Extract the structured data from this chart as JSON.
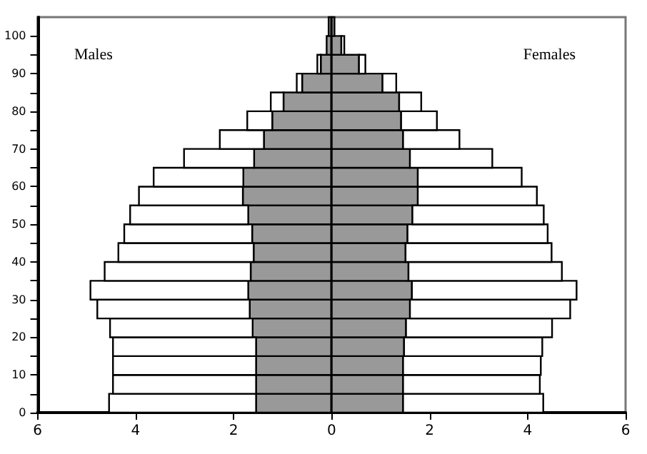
{
  "chart_data": {
    "type": "bar",
    "orientation": "horizontal",
    "x": [
      2.5,
      7.5,
      12.5,
      17.5,
      22.5,
      27.5,
      32.5,
      37.5,
      42.5,
      47.5,
      52.5,
      57.5,
      62.5,
      67.5,
      72.5,
      77.5,
      82.5,
      87.5,
      92.5,
      97.5,
      102.5
    ],
    "series": [
      {
        "color": "#999999",
        "values": [
          -1.54,
          -1.54,
          -1.54,
          -1.54,
          -1.61,
          -1.67,
          -1.7,
          -1.65,
          -1.59,
          -1.62,
          -1.7,
          -1.81,
          -1.8,
          -1.58,
          -1.38,
          -1.21,
          -0.98,
          -0.6,
          -0.22,
          -0.1,
          -0.06
        ]
      },
      {
        "color": "#ffffff",
        "values": [
          -3.0,
          -2.92,
          -2.92,
          -2.92,
          -2.91,
          -3.11,
          -3.22,
          -2.98,
          -2.76,
          -2.61,
          -2.41,
          -2.12,
          -1.83,
          -1.43,
          -0.9,
          -0.51,
          -0.26,
          -0.11,
          -0.07,
          null,
          null
        ]
      },
      {
        "color": "#999999",
        "values": [
          1.46,
          1.46,
          1.46,
          1.48,
          1.52,
          1.6,
          1.64,
          1.57,
          1.51,
          1.55,
          1.65,
          1.76,
          1.76,
          1.6,
          1.46,
          1.42,
          1.38,
          1.04,
          0.56,
          0.2,
          0.06
        ]
      },
      {
        "color": "#ffffff",
        "values": [
          2.86,
          2.79,
          2.81,
          2.82,
          2.98,
          3.27,
          3.36,
          3.13,
          2.98,
          2.86,
          2.68,
          2.43,
          2.12,
          1.68,
          1.15,
          0.73,
          0.45,
          0.28,
          0.13,
          0.06,
          null
        ]
      }
    ],
    "stacked": true,
    "xlim": [
      -6,
      6
    ],
    "xticks": [
      {
        "value": -6,
        "label": "6"
      },
      {
        "value": -4,
        "label": "4"
      },
      {
        "value": -2,
        "label": "2"
      },
      0,
      2,
      4,
      6
    ],
    "ylim": [
      0,
      105
    ],
    "yticks": [
      0,
      {
        "value": 5,
        "label": null
      },
      10,
      {
        "value": 15,
        "label": null
      },
      20,
      {
        "value": 25,
        "label": null
      },
      30,
      {
        "value": 35,
        "label": null
      },
      40,
      {
        "value": 45,
        "label": null
      },
      50,
      {
        "value": 55,
        "label": null
      },
      60,
      {
        "value": 65,
        "label": null
      },
      70,
      {
        "value": 75,
        "label": null
      },
      80,
      {
        "value": 85,
        "label": null
      },
      90,
      {
        "value": 95,
        "label": null
      },
      100
    ],
    "ref_lines": [
      {
        "axis": "x",
        "value": 0,
        "color": "#000000"
      }
    ],
    "grid": false,
    "annotations": [
      "Males",
      "Females"
    ]
  }
}
